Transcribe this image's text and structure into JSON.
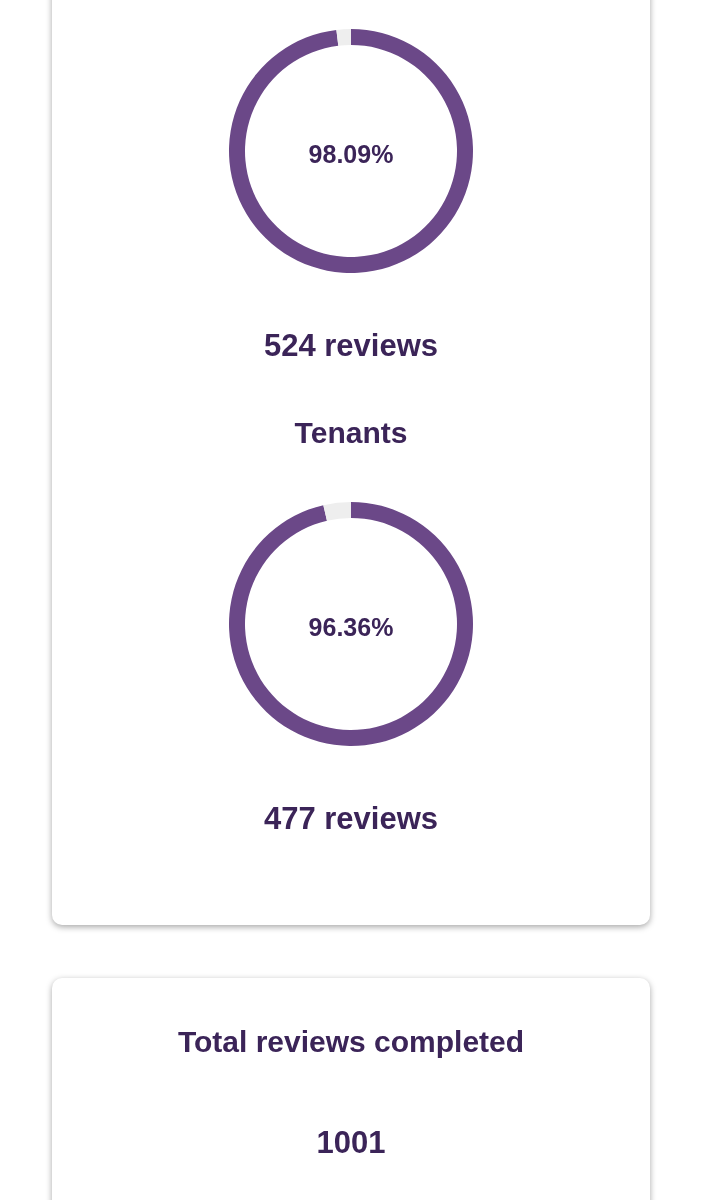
{
  "chart_data": [
    {
      "type": "donut",
      "categories": [
        null,
        null
      ],
      "values": [
        98.09,
        1.91
      ],
      "colors": [
        "#6b4888",
        "#eeeeee"
      ],
      "annotations": [
        "98.09%"
      ],
      "subtitle": "524 reviews"
    },
    {
      "type": "donut",
      "title": "Tenants",
      "categories": [
        null,
        null
      ],
      "values": [
        96.36,
        3.64
      ],
      "colors": [
        "#6b4888",
        "#eeeeee"
      ],
      "annotations": [
        "96.36%"
      ],
      "subtitle": "477 reviews"
    },
    {
      "type": "other",
      "title": "Total reviews completed",
      "annotations": [
        "1001"
      ]
    }
  ]
}
